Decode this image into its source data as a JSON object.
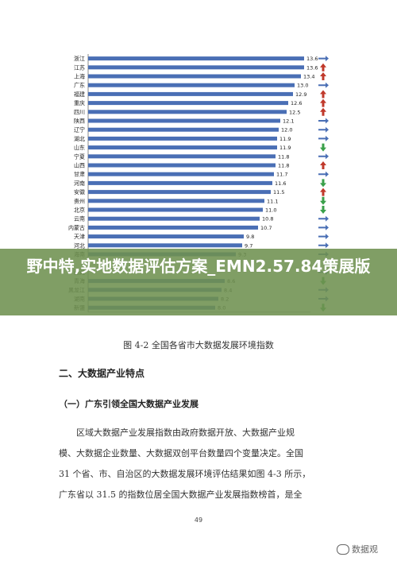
{
  "overlay_title": "野中特,实地数据评估方案_EMN2.57.84策展版",
  "caption": "图 4-2 全国各省市大数据发展环境指数",
  "section_heading": "二、大数据产业特点",
  "subsection_heading": "（一）广东引领全国大数据产业发展",
  "paragraph_lines": [
    "区域大数据产业发展指数由政府数据开放、大数据产业规",
    "模、大数据企业数量、大数据双创平台数量四个变量决定。全国",
    "31 个省、市、自治区的大数据发展环境评估结果如图 4-3 所示，",
    "广东省以 31.5 的指数位居全国大数据产业发展指数榜首，是全"
  ],
  "page_number": "49",
  "watermark_text": "数据观",
  "colors": {
    "bar": "#4a6fb5",
    "up": "#c0392b",
    "down": "#3aa04a",
    "flat": "#4a6fb5",
    "grid": "#888888"
  },
  "chart_data": {
    "type": "bar",
    "orientation": "horizontal",
    "title": "",
    "xlabel": "",
    "ylabel": "",
    "xlim": [
      0,
      14
    ],
    "categories": [
      "浙江",
      "江苏",
      "上海",
      "广东",
      "福建",
      "重庆",
      "四川",
      "陕西",
      "辽宁",
      "湖北",
      "山东",
      "宁夏",
      "山西",
      "甘肃",
      "河南",
      "安徽",
      "贵州",
      "北京",
      "云南",
      "内蒙古",
      "天津",
      "河北",
      "海南",
      "",
      "西藏",
      "青海",
      "黑龙江",
      "湖南",
      "新疆"
    ],
    "values": [
      13.6,
      13.6,
      13.4,
      13.0,
      12.9,
      12.6,
      12.5,
      12.1,
      12.0,
      11.9,
      11.9,
      11.8,
      11.8,
      11.7,
      11.6,
      11.5,
      11.1,
      11.0,
      10.8,
      10.7,
      9.8,
      9.7,
      9.3,
      null,
      null,
      8.6,
      8.4,
      8.2,
      8.0
    ],
    "value_labels": [
      "13.6",
      "13.6",
      "13.4",
      "13.0",
      "12.9",
      "12.6",
      "12.5",
      "12.1",
      "12.0",
      "11.9",
      "11.9",
      "11.8",
      "11.8",
      "11.7",
      "11.6",
      "11.5",
      "11.1",
      "11.0",
      "10.8",
      "10.7",
      "9.8",
      "9.7",
      "9.3",
      "",
      "",
      "8.6",
      "8.4",
      "8.2",
      "8.0"
    ],
    "trend": [
      "flat",
      "up",
      "up",
      "flat",
      "up",
      "up",
      "up",
      "flat",
      "flat",
      "flat",
      "down",
      "flat",
      "up",
      "flat",
      "down",
      "up",
      "down",
      "down",
      "flat",
      "flat",
      "flat",
      "flat",
      "flat",
      "",
      "flat",
      "down",
      "flat",
      "flat",
      "down"
    ]
  }
}
